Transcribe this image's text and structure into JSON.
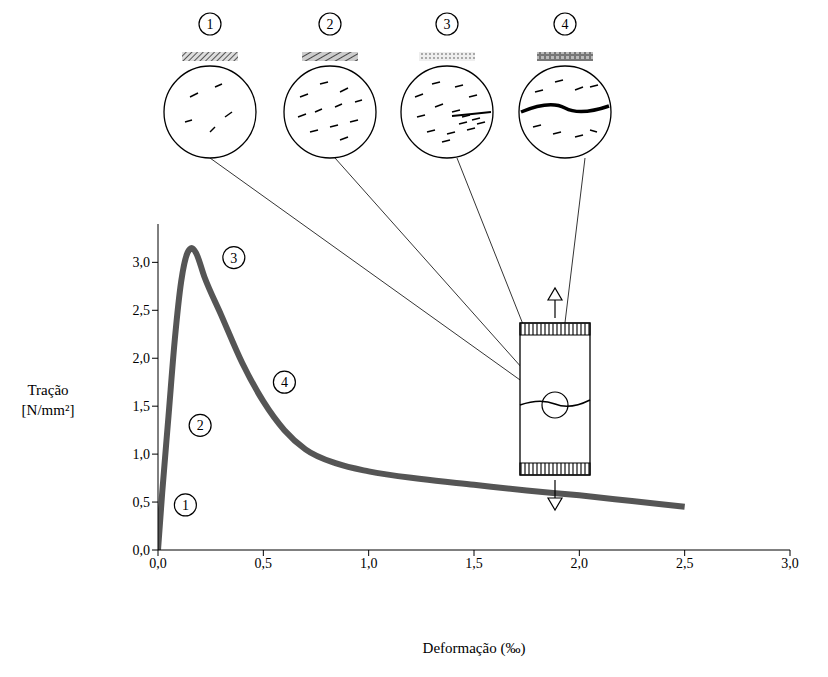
{
  "chart_data": {
    "type": "line",
    "x_label": "Deformação (‰)",
    "y_label": "Tração [N/mm²]",
    "x": [
      0,
      0.02,
      0.05,
      0.08,
      0.11,
      0.14,
      0.16,
      0.18,
      0.22,
      0.3,
      0.4,
      0.5,
      0.6,
      0.7,
      0.85,
      1.0,
      1.25,
      1.5,
      1.75,
      2.0,
      2.25,
      2.5
    ],
    "values": [
      0,
      0.6,
      1.4,
      2.2,
      2.8,
      3.1,
      3.15,
      3.1,
      2.85,
      2.45,
      1.95,
      1.55,
      1.25,
      1.05,
      0.9,
      0.82,
      0.74,
      0.68,
      0.62,
      0.57,
      0.51,
      0.45
    ],
    "color": "#555555",
    "line_style": "solid",
    "marker": "none",
    "grid": false,
    "xlim": [
      0,
      3.0
    ],
    "ylim": [
      0,
      3.4
    ],
    "xticks": [
      {
        "value": 0,
        "label": "0,0"
      },
      {
        "value": 0.5,
        "label": "0,5"
      },
      {
        "value": 1.0,
        "label": "1,0"
      },
      {
        "value": 1.5,
        "label": "1,5"
      },
      {
        "value": 2.0,
        "label": "2,0"
      },
      {
        "value": 2.5,
        "label": "2,5"
      },
      {
        "value": 3.0,
        "label": "3,0"
      }
    ],
    "yticks": [
      {
        "value": 0,
        "label": "0,0"
      },
      {
        "value": 0.5,
        "label": "0,5"
      },
      {
        "value": 1.0,
        "label": "1,0"
      },
      {
        "value": 1.5,
        "label": "1,5"
      },
      {
        "value": 2.0,
        "label": "2,0"
      },
      {
        "value": 2.5,
        "label": "2,5"
      },
      {
        "value": 3.0,
        "label": "3,0"
      }
    ],
    "annotations": [
      {
        "text": "1",
        "x": 0.13,
        "y": 0.47
      },
      {
        "text": "2",
        "x": 0.2,
        "y": 1.3
      },
      {
        "text": "3",
        "x": 0.36,
        "y": 3.05
      },
      {
        "text": "4",
        "x": 0.6,
        "y": 1.75
      }
    ]
  }
}
